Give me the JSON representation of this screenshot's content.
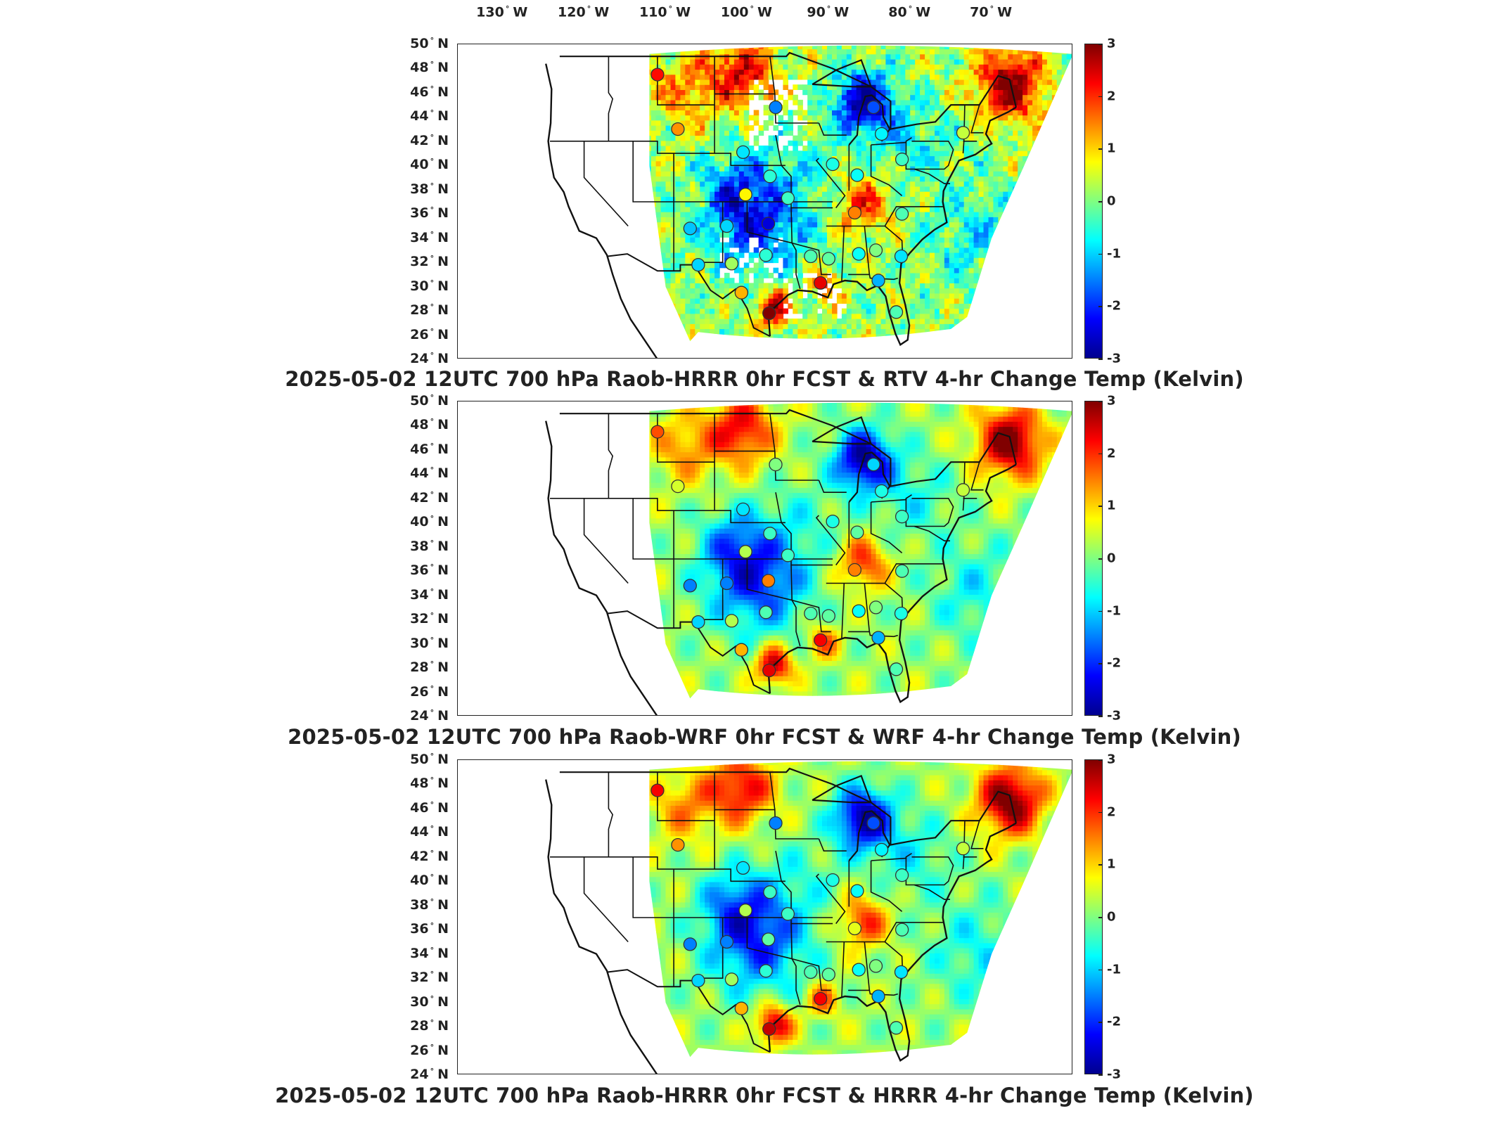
{
  "lon_labels": [
    {
      "deg": "130",
      "hemi": "W"
    },
    {
      "deg": "120",
      "hemi": "W"
    },
    {
      "deg": "110",
      "hemi": "W"
    },
    {
      "deg": "100",
      "hemi": "W"
    },
    {
      "deg": "90",
      "hemi": "W"
    },
    {
      "deg": "80",
      "hemi": "W"
    },
    {
      "deg": "70",
      "hemi": "W"
    }
  ],
  "lat_labels": [
    {
      "deg": "50",
      "hemi": "N"
    },
    {
      "deg": "48",
      "hemi": "N"
    },
    {
      "deg": "46",
      "hemi": "N"
    },
    {
      "deg": "44",
      "hemi": "N"
    },
    {
      "deg": "42",
      "hemi": "N"
    },
    {
      "deg": "40",
      "hemi": "N"
    },
    {
      "deg": "38",
      "hemi": "N"
    },
    {
      "deg": "36",
      "hemi": "N"
    },
    {
      "deg": "34",
      "hemi": "N"
    },
    {
      "deg": "32",
      "hemi": "N"
    },
    {
      "deg": "30",
      "hemi": "N"
    },
    {
      "deg": "28",
      "hemi": "N"
    },
    {
      "deg": "26",
      "hemi": "N"
    },
    {
      "deg": "24",
      "hemi": "N"
    }
  ],
  "colorbar": {
    "ticks": [
      "3",
      "2",
      "1",
      "0",
      "-1",
      "-2",
      "-3"
    ],
    "range": [
      -3,
      3
    ],
    "colormap": "jet"
  },
  "panels": [
    {
      "title": "2025-05-02 12UTC 700 hPa Raob-HRRR 0hr FCST & RTV 4-hr Change Temp (Kelvin)"
    },
    {
      "title": "2025-05-02 12UTC 700 hPa Raob-WRF 0hr FCST & WRF 4-hr Change Temp (Kelvin)"
    },
    {
      "title": "2025-05-02 12UTC 700 hPa Raob-HRRR 0hr FCST & HRRR 4-hr Change Temp (Kelvin)"
    }
  ],
  "stations": [
    {
      "lon": -111.0,
      "lat": 47.5,
      "v": [
        2.2,
        1.8,
        2.3
      ]
    },
    {
      "lon": -108.5,
      "lat": 43.0,
      "v": [
        1.4,
        0.5,
        1.4
      ]
    },
    {
      "lon": -96.5,
      "lat": 44.8,
      "v": [
        -1.5,
        0.0,
        -1.5
      ]
    },
    {
      "lon": -84.5,
      "lat": 44.8,
      "v": [
        -1.8,
        -1.0,
        -1.8
      ]
    },
    {
      "lon": -83.5,
      "lat": 42.6,
      "v": [
        -0.8,
        -0.6,
        -0.8
      ]
    },
    {
      "lon": -73.5,
      "lat": 42.7,
      "v": [
        0.4,
        0.4,
        0.4
      ]
    },
    {
      "lon": -100.5,
      "lat": 41.1,
      "v": [
        -0.9,
        -0.9,
        -0.9
      ]
    },
    {
      "lon": -97.2,
      "lat": 39.1,
      "v": [
        -0.5,
        -0.4,
        -0.4
      ]
    },
    {
      "lon": -89.5,
      "lat": 40.1,
      "v": [
        -0.6,
        -0.6,
        -0.6
      ]
    },
    {
      "lon": -86.5,
      "lat": 39.2,
      "v": [
        -0.7,
        -0.2,
        -0.7
      ]
    },
    {
      "lon": -81.0,
      "lat": 40.5,
      "v": [
        -0.4,
        -0.4,
        -0.4
      ]
    },
    {
      "lon": -100.2,
      "lat": 37.6,
      "v": [
        0.8,
        0.3,
        0.3
      ]
    },
    {
      "lon": -95.0,
      "lat": 37.3,
      "v": [
        -0.4,
        -0.4,
        -0.4
      ]
    },
    {
      "lon": -86.8,
      "lat": 36.1,
      "v": [
        1.5,
        1.5,
        0.6
      ]
    },
    {
      "lon": -81.0,
      "lat": 36.0,
      "v": [
        -0.3,
        -0.3,
        -0.3
      ]
    },
    {
      "lon": -107.0,
      "lat": 34.8,
      "v": [
        -1.1,
        -1.5,
        -1.5
      ]
    },
    {
      "lon": -102.5,
      "lat": 35.0,
      "v": [
        -1.0,
        -1.5,
        -1.5
      ]
    },
    {
      "lon": -97.4,
      "lat": 35.2,
      "v": [
        -2.5,
        1.5,
        -0.2
      ]
    },
    {
      "lon": -97.7,
      "lat": 32.6,
      "v": [
        -0.5,
        -0.3,
        -0.5
      ]
    },
    {
      "lon": -101.9,
      "lat": 31.9,
      "v": [
        0.2,
        0.3,
        0.2
      ]
    },
    {
      "lon": -106.0,
      "lat": 31.8,
      "v": [
        -1.0,
        -1.0,
        -1.0
      ]
    },
    {
      "lon": -92.2,
      "lat": 32.5,
      "v": [
        -0.3,
        -0.3,
        -0.3
      ]
    },
    {
      "lon": -90.0,
      "lat": 32.3,
      "v": [
        -0.2,
        -0.2,
        -0.2
      ]
    },
    {
      "lon": -86.3,
      "lat": 32.7,
      "v": [
        -0.7,
        -0.7,
        -0.7
      ]
    },
    {
      "lon": -84.2,
      "lat": 33.0,
      "v": [
        0.0,
        0.0,
        0.0
      ]
    },
    {
      "lon": -81.1,
      "lat": 32.5,
      "v": [
        -0.9,
        -0.6,
        -0.9
      ]
    },
    {
      "lon": -91.0,
      "lat": 30.3,
      "v": [
        2.4,
        2.3,
        2.3
      ]
    },
    {
      "lon": -83.9,
      "lat": 30.5,
      "v": [
        -1.2,
        -1.2,
        -1.2
      ]
    },
    {
      "lon": -100.7,
      "lat": 29.5,
      "v": [
        1.2,
        1.2,
        1.2
      ]
    },
    {
      "lon": -97.3,
      "lat": 27.8,
      "v": [
        3.0,
        2.4,
        2.6
      ]
    },
    {
      "lon": -81.7,
      "lat": 27.9,
      "v": [
        -0.3,
        -0.3,
        -0.3
      ]
    }
  ]
}
